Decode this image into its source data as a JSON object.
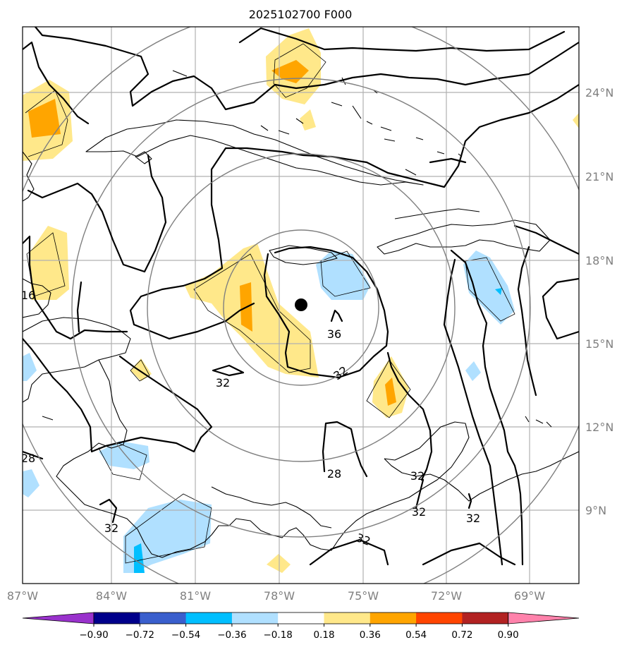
{
  "title": "2025102700 F000",
  "lon_ticks": [
    "87°W",
    "84°W",
    "81°W",
    "78°W",
    "75°W",
    "72°W",
    "69°W"
  ],
  "lat_ticks": [
    "24°N",
    "21°N",
    "18°N",
    "15°N",
    "12°N",
    "9°N"
  ],
  "colorbar": {
    "ticks": [
      "−0.90",
      "−0.72",
      "−0.54",
      "−0.36",
      "−0.18",
      "0.18",
      "0.36",
      "0.54",
      "0.72",
      "0.90"
    ],
    "colors": [
      "#9932cc",
      "#00008b",
      "#3a5fcd",
      "#00bfff",
      "#b0e0ff",
      "#ffffff",
      "#ffe88a",
      "#ffa500",
      "#ff4500",
      "#b22222",
      "#ff82ab"
    ]
  },
  "contour_labels": [
    "16",
    "36",
    "32",
    "32",
    "28",
    "28",
    "32",
    "32",
    "32",
    "32",
    "32"
  ],
  "center_marker": "storm-center-dot"
}
